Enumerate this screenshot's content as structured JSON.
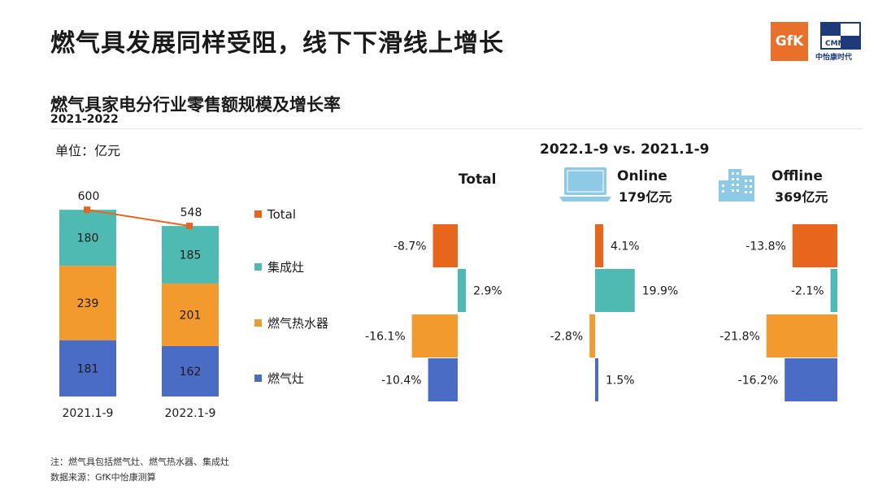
{
  "header": {
    "title": "燃气具发展同样受阻，线下下滑线上增长",
    "gfk_logo": "GfK",
    "cmm_logo": "CMM",
    "cmm_name": "中怡康时代"
  },
  "chart_header": {
    "subtitle": "燃气具家电分行业零售额规模及增长率",
    "period": "2021-2022",
    "unit": "单位：亿元",
    "compare_label": "2022.1-9 vs. 2021.1-9"
  },
  "colors": {
    "total": "#e8651e",
    "integrated_stove": "#4fbab1",
    "water_heater": "#f39a2e",
    "gas_stove": "#4a6cc4",
    "line": "#e8651e",
    "online_icon": "#8ecae6"
  },
  "chart_data": [
    {
      "type": "bar",
      "stacked": true,
      "categories": [
        "2021.1-9",
        "2022.1-9"
      ],
      "series": [
        {
          "name": "燃气灶",
          "values": [
            181,
            162
          ]
        },
        {
          "name": "燃气热水器",
          "values": [
            239,
            201
          ]
        },
        {
          "name": "集成灶",
          "values": [
            180,
            185
          ]
        }
      ],
      "line_series": {
        "name": "Total",
        "values": [
          600,
          548
        ]
      },
      "legend": [
        "Total",
        "集成灶",
        "燃气热水器",
        "燃气灶"
      ],
      "legend_position": "right"
    },
    {
      "type": "bar",
      "orientation": "horizontal",
      "title": "Total",
      "categories": [
        "Total",
        "集成灶",
        "燃气热水器",
        "燃气灶"
      ],
      "values": [
        -8.7,
        2.9,
        -16.1,
        -10.4
      ],
      "labels": [
        "-8.7%",
        "2.9%",
        "-16.1%",
        "-10.4%"
      ]
    },
    {
      "type": "bar",
      "orientation": "horizontal",
      "title": "Online",
      "subtitle": "179亿元",
      "categories": [
        "Total",
        "集成灶",
        "燃气热水器",
        "燃气灶"
      ],
      "values": [
        4.1,
        19.9,
        -2.8,
        1.5
      ],
      "labels": [
        "4.1%",
        "19.9%",
        "-2.8%",
        "1.5%"
      ]
    },
    {
      "type": "bar",
      "orientation": "horizontal",
      "title": "Offline",
      "subtitle": "369亿元",
      "categories": [
        "Total",
        "集成灶",
        "燃气热水器",
        "燃气灶"
      ],
      "values": [
        -13.8,
        -2.1,
        -21.8,
        -16.2
      ],
      "labels": [
        "-13.8%",
        "-2.1%",
        "-21.8%",
        "-16.2%"
      ]
    }
  ],
  "notes": {
    "note": "注：燃气具包括燃气灶、燃气热水器、集成灶",
    "source": "数据来源：GfK中怡康测算"
  }
}
